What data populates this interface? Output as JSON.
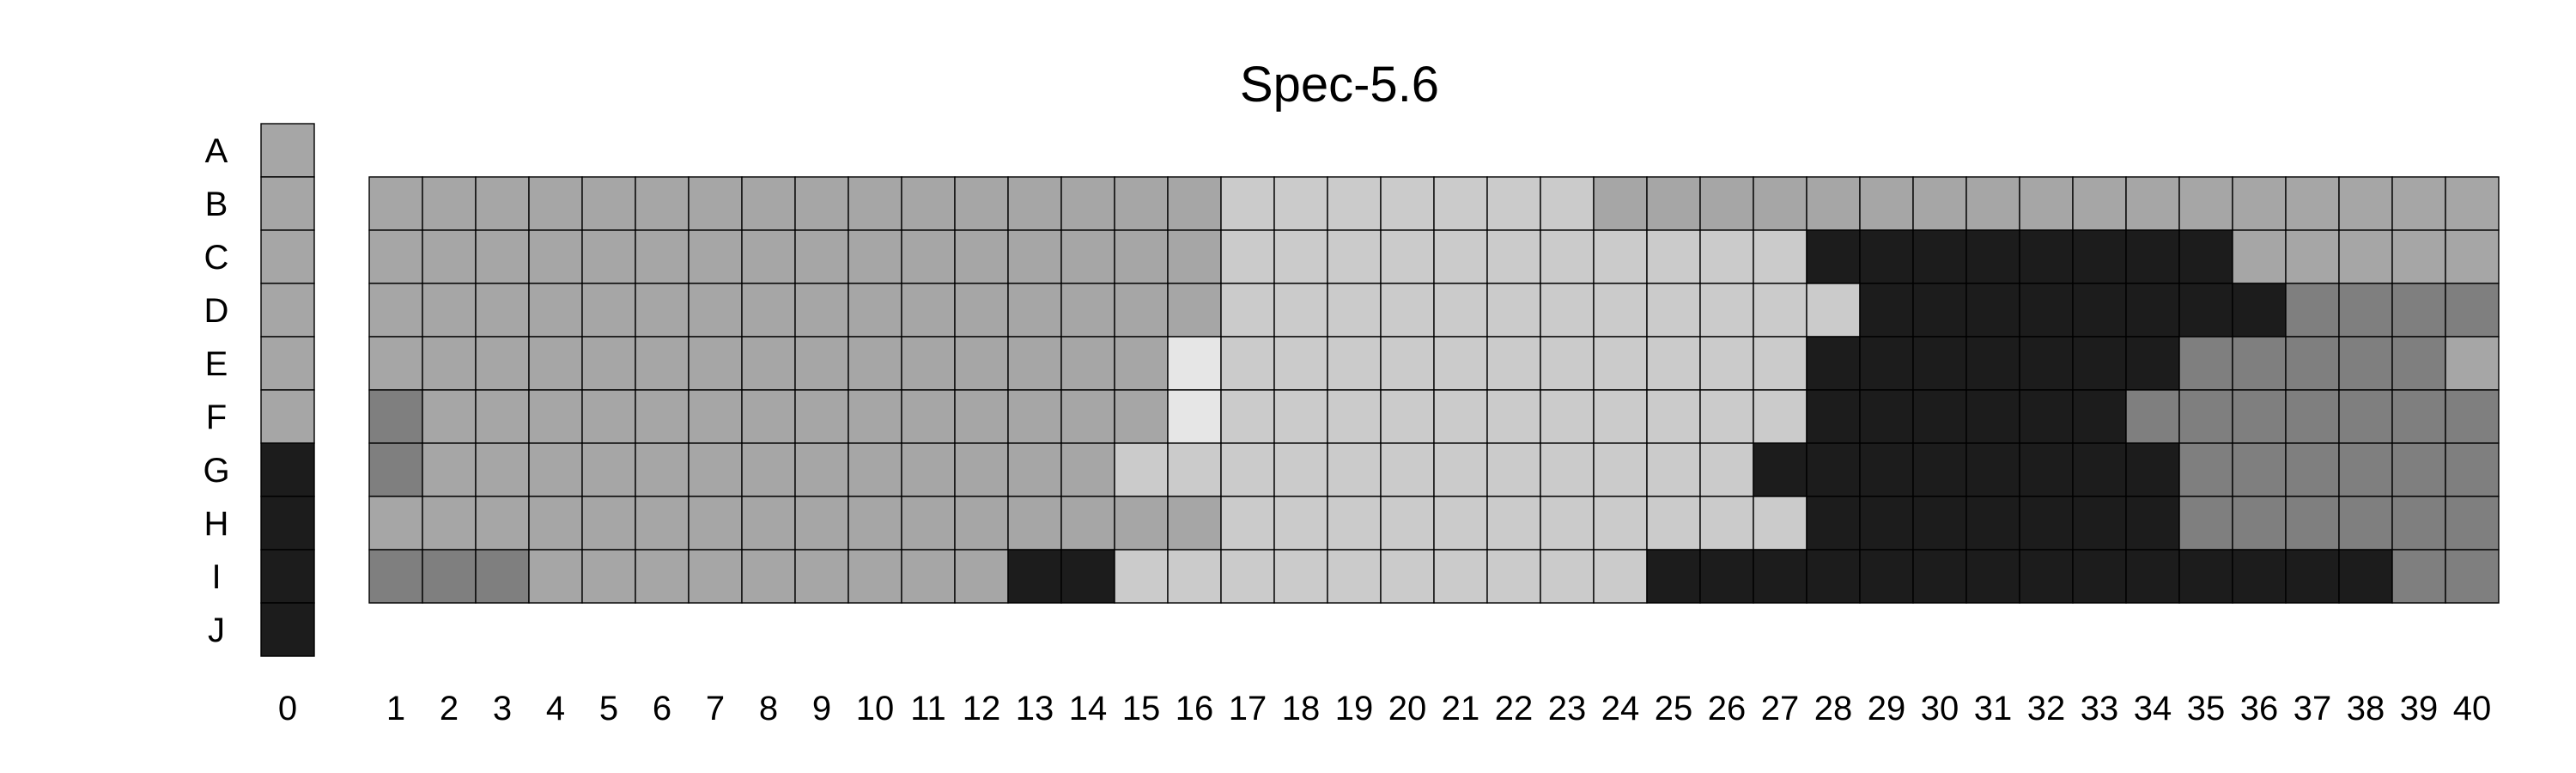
{
  "chart_data": {
    "type": "heatmap",
    "title": "Spec-5.6",
    "xlabel": "",
    "ylabel": "",
    "grid": true,
    "legend": "none",
    "palette": {
      "1": "#e6e6e6",
      "2": "#cbcbcb",
      "3": "#a6a6a6",
      "4": "#7f7f7f",
      "5": "#1c1c1c"
    },
    "rows": [
      "A",
      "B",
      "C",
      "D",
      "E",
      "F",
      "G",
      "H",
      "I",
      "J"
    ],
    "columns": [
      "1",
      "2",
      "3",
      "4",
      "5",
      "6",
      "7",
      "8",
      "9",
      "10",
      "11",
      "12",
      "13",
      "14",
      "15",
      "16",
      "17",
      "18",
      "19",
      "20",
      "21",
      "22",
      "23",
      "24",
      "25",
      "26",
      "27",
      "28",
      "29",
      "30",
      "31",
      "32",
      "33",
      "34",
      "35",
      "36",
      "37",
      "38",
      "39",
      "40"
    ],
    "reference_label": "0",
    "reference_column": [
      3,
      3,
      3,
      3,
      3,
      3,
      5,
      5,
      5,
      5
    ],
    "grid_rows": [
      "B",
      "C",
      "D",
      "E",
      "F",
      "G",
      "H",
      "I"
    ],
    "values": [
      [
        3,
        3,
        3,
        3,
        3,
        3,
        3,
        3,
        3,
        3,
        3,
        3,
        3,
        3,
        3,
        3,
        2,
        2,
        2,
        2,
        2,
        2,
        2,
        3,
        3,
        3,
        3,
        3,
        3,
        3,
        3,
        3,
        3,
        3,
        3,
        3,
        3,
        3,
        3,
        3
      ],
      [
        3,
        3,
        3,
        3,
        3,
        3,
        3,
        3,
        3,
        3,
        3,
        3,
        3,
        3,
        3,
        3,
        2,
        2,
        2,
        2,
        2,
        2,
        2,
        2,
        2,
        2,
        2,
        5,
        5,
        5,
        5,
        5,
        5,
        5,
        5,
        3,
        3,
        3,
        3,
        3
      ],
      [
        3,
        3,
        3,
        3,
        3,
        3,
        3,
        3,
        3,
        3,
        3,
        3,
        3,
        3,
        3,
        3,
        2,
        2,
        2,
        2,
        2,
        2,
        2,
        2,
        2,
        2,
        2,
        2,
        5,
        5,
        5,
        5,
        5,
        5,
        5,
        5,
        4,
        4,
        4,
        4
      ],
      [
        3,
        3,
        3,
        3,
        3,
        3,
        3,
        3,
        3,
        3,
        3,
        3,
        3,
        3,
        3,
        1,
        2,
        2,
        2,
        2,
        2,
        2,
        2,
        2,
        2,
        2,
        2,
        5,
        5,
        5,
        5,
        5,
        5,
        5,
        4,
        4,
        4,
        4,
        4,
        3
      ],
      [
        4,
        3,
        3,
        3,
        3,
        3,
        3,
        3,
        3,
        3,
        3,
        3,
        3,
        3,
        3,
        1,
        2,
        2,
        2,
        2,
        2,
        2,
        2,
        2,
        2,
        2,
        2,
        5,
        5,
        5,
        5,
        5,
        5,
        4,
        4,
        4,
        4,
        4,
        4,
        4
      ],
      [
        4,
        3,
        3,
        3,
        3,
        3,
        3,
        3,
        3,
        3,
        3,
        3,
        3,
        3,
        2,
        2,
        2,
        2,
        2,
        2,
        2,
        2,
        2,
        2,
        2,
        2,
        5,
        5,
        5,
        5,
        5,
        5,
        5,
        5,
        4,
        4,
        4,
        4,
        4,
        4
      ],
      [
        3,
        3,
        3,
        3,
        3,
        3,
        3,
        3,
        3,
        3,
        3,
        3,
        3,
        3,
        3,
        3,
        2,
        2,
        2,
        2,
        2,
        2,
        2,
        2,
        2,
        2,
        2,
        5,
        5,
        5,
        5,
        5,
        5,
        5,
        4,
        4,
        4,
        4,
        4,
        4
      ],
      [
        4,
        4,
        4,
        3,
        3,
        3,
        3,
        3,
        3,
        3,
        3,
        3,
        5,
        5,
        2,
        2,
        2,
        2,
        2,
        2,
        2,
        2,
        2,
        2,
        5,
        5,
        5,
        5,
        5,
        5,
        5,
        5,
        5,
        5,
        5,
        5,
        5,
        5,
        4,
        4
      ]
    ]
  }
}
